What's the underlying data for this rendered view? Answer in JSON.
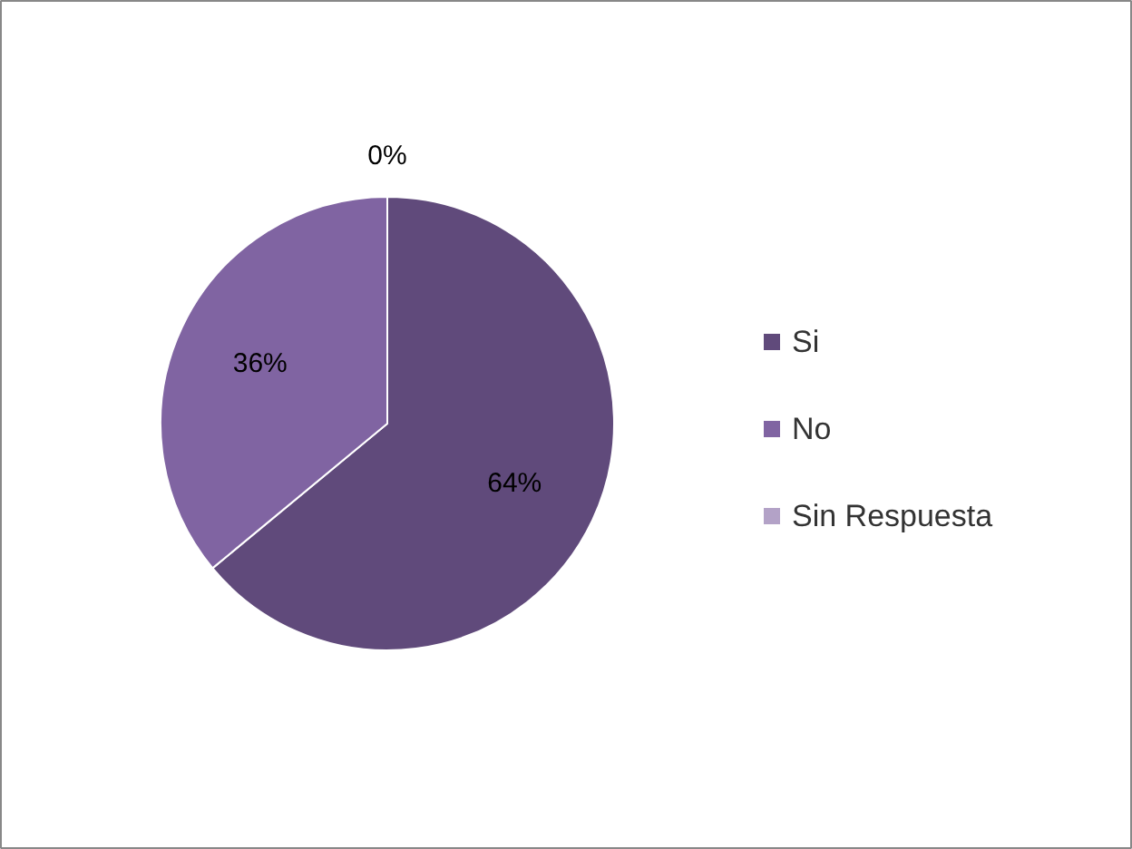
{
  "chart_data": {
    "type": "pie",
    "categories": [
      "Si",
      "No",
      "Sin Respuesta"
    ],
    "values": [
      64,
      36,
      0
    ],
    "colors": [
      "#604a7b",
      "#8064a2",
      "#b3a2c7"
    ],
    "value_labels": [
      "64%",
      "36%",
      "0%"
    ],
    "legend": "right"
  }
}
